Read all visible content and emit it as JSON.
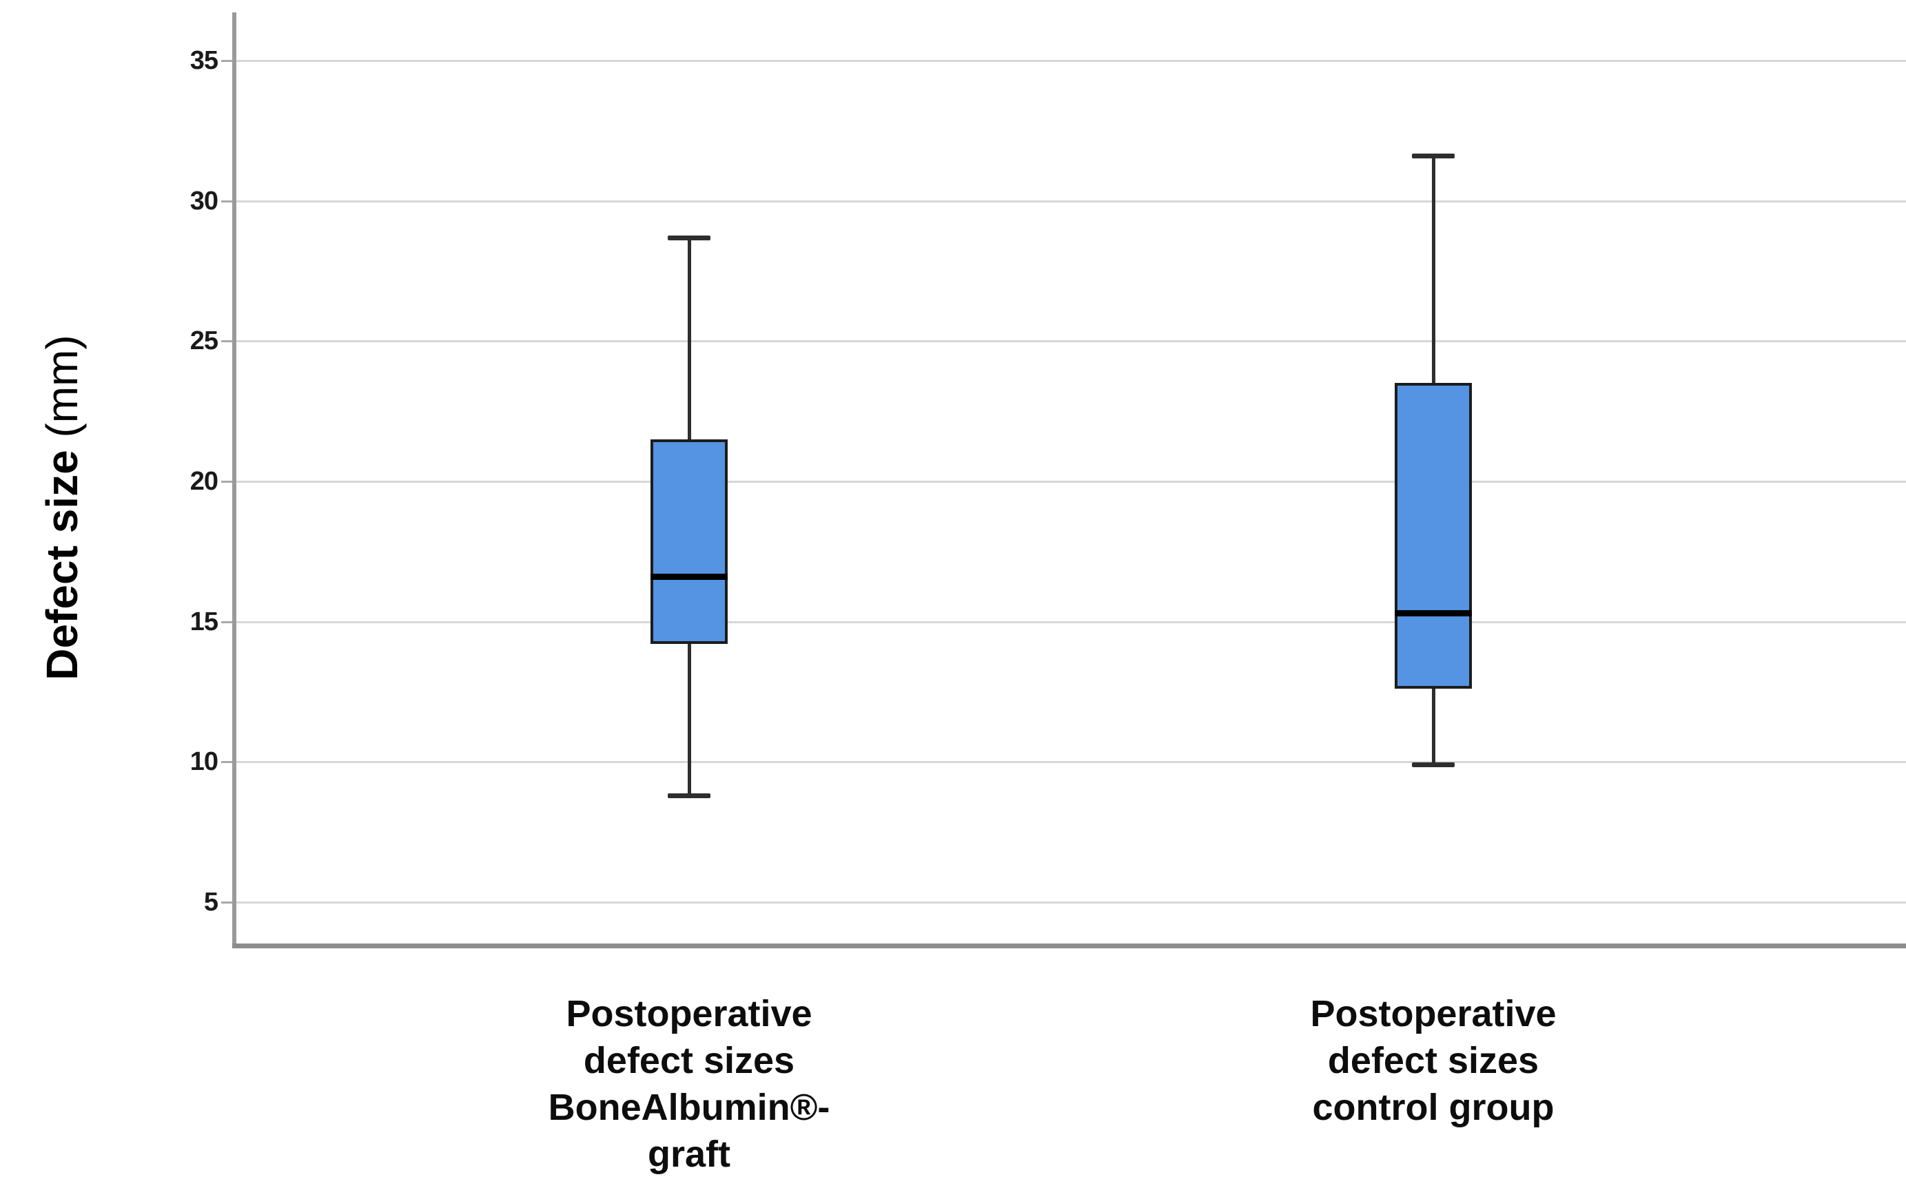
{
  "chart_data": {
    "type": "boxplot",
    "title": "",
    "ylabel": "Defect size (mm)",
    "ylabel_main": "Defect size",
    "ylabel_unit": " (mm)",
    "yticks": [
      35,
      30,
      25,
      20,
      15,
      10,
      5
    ],
    "ylim": [
      3.5,
      36.6
    ],
    "grid": "horizontal",
    "legend": "none",
    "box_fill_color": "#5593E3",
    "box_border_color": "#1c1c1c",
    "median_color": "#000000",
    "whisker_color": "#2e2e2e",
    "gridline_color": "#d7d7d7",
    "axis_color": "#9a9a9a",
    "groups": [
      {
        "label": "Postoperative defect sizes BoneAlbumin®-graft",
        "label_lines": [
          "Postoperative",
          "defect sizes",
          "BoneAlbumin®-",
          "graft"
        ],
        "whisker_low": 8.8,
        "q1": 14.2,
        "median": 16.6,
        "q3": 21.5,
        "whisker_high": 28.7
      },
      {
        "label": "Postoperative defect sizes control group",
        "label_lines": [
          "Postoperative",
          "defect sizes",
          "control group"
        ],
        "whisker_low": 9.9,
        "q1": 12.6,
        "median": 15.3,
        "q3": 23.5,
        "whisker_high": 31.6
      }
    ]
  }
}
